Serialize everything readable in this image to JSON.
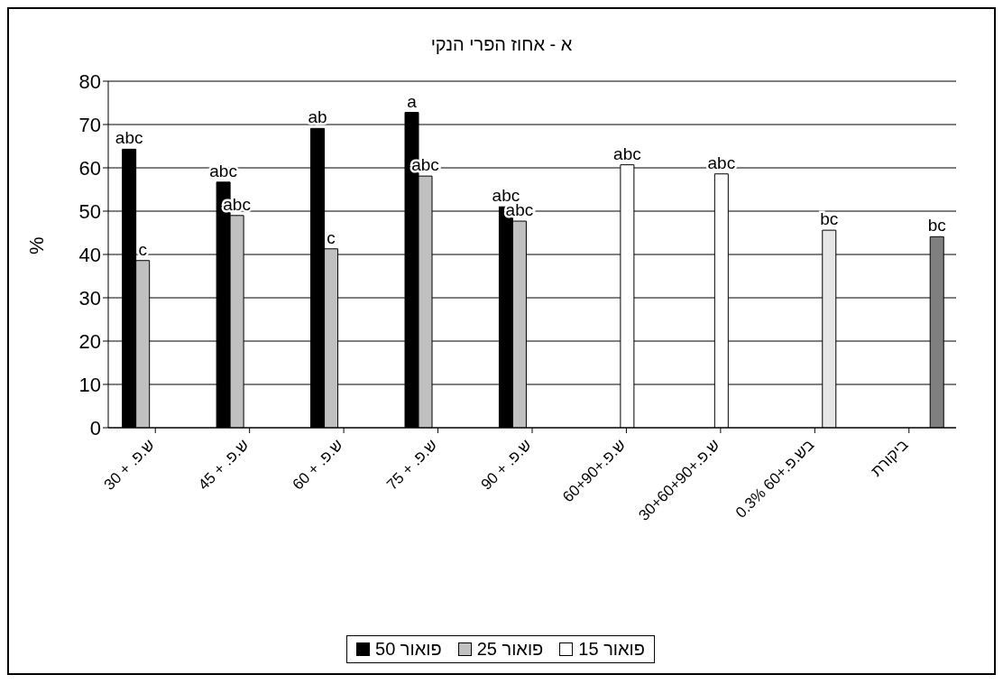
{
  "chart_data": {
    "type": "bar",
    "title": "א - אחוז הפרי הנקי",
    "ylabel": "%",
    "categories": [
      "ש.פ. + 30",
      "ש.פ. + 45",
      "ש.פ. + 60",
      "ש.פ. + 75",
      "ש.פ. + 90",
      "ש.פ.+60+90",
      "ש.פ.+30+60+90",
      "0.3% בש.פ.+60",
      "ביקורת"
    ],
    "series": [
      {
        "name": "פואור 50",
        "color": "#000000",
        "values": [
          64.3,
          56.7,
          69.1,
          72.8,
          51,
          null,
          null,
          null,
          null
        ],
        "value_labels": [
          "abc",
          "abc",
          "ab",
          "a",
          "abc",
          null,
          null,
          null,
          null
        ]
      },
      {
        "name": "פואור 25",
        "color": "#c0c0c0",
        "values": [
          38.6,
          49,
          41.3,
          58.1,
          47.7,
          null,
          null,
          null,
          null
        ],
        "value_labels": [
          "c",
          "abc",
          "c",
          "abc",
          "abc",
          null,
          null,
          null,
          null
        ]
      },
      {
        "name": "פואור 15",
        "color": "#ffffff",
        "values": [
          null,
          null,
          null,
          null,
          null,
          60.7,
          58.6,
          null,
          null
        ],
        "value_labels": [
          null,
          null,
          null,
          null,
          null,
          "abc",
          "abc",
          null,
          null
        ]
      },
      {
        "color": "#e6e6e6",
        "values": [
          null,
          null,
          null,
          null,
          null,
          null,
          null,
          45.6,
          null
        ],
        "value_labels": [
          null,
          null,
          null,
          null,
          null,
          null,
          null,
          "bc",
          null
        ]
      },
      {
        "color": "#7f7f7f",
        "values": [
          null,
          null,
          null,
          null,
          null,
          null,
          null,
          null,
          44.1
        ],
        "value_labels": [
          null,
          null,
          null,
          null,
          null,
          null,
          null,
          null,
          "bc"
        ]
      }
    ],
    "ylim": [
      0,
      80
    ],
    "yticks": [
      0,
      10,
      20,
      30,
      40,
      50,
      60,
      70,
      80
    ],
    "grid": "y",
    "legend": "bottom"
  }
}
